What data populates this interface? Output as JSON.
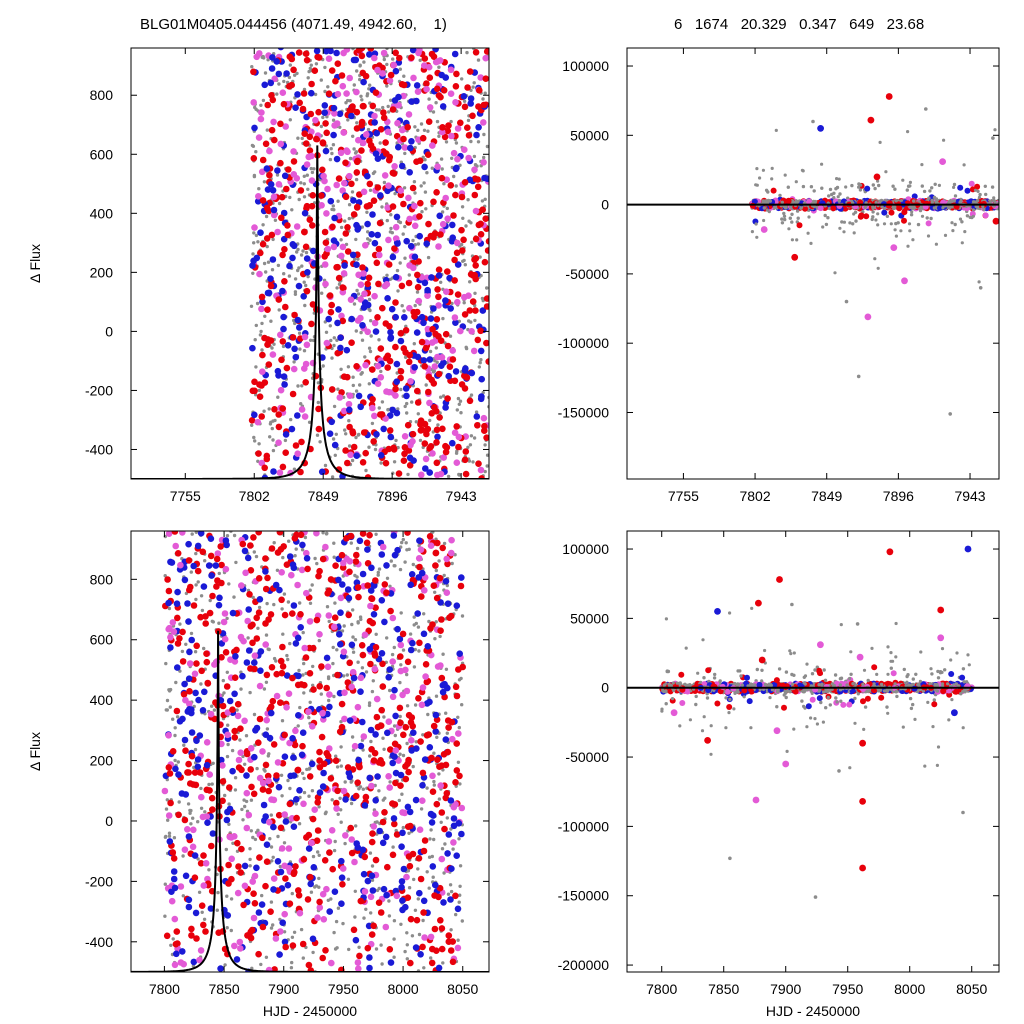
{
  "header": {
    "left_title": "BLG01M0405.044456 (4071.49, 4942.60,    1)",
    "right_title": "6   1674   20.329   0.347   649   23.68"
  },
  "colors": {
    "gray": "#8c8c8c",
    "red": "#e8000b",
    "blue": "#1a1ad6",
    "magenta": "#e35ad6",
    "model": "#000000"
  },
  "chart_data": [
    {
      "id": "top-left",
      "type": "scatter",
      "xlabel": "",
      "ylabel": "Δ Flux",
      "xlim": [
        7718,
        7962
      ],
      "ylim": [
        -500,
        960
      ],
      "xticks": [
        7755,
        7802,
        7849,
        7896,
        7943
      ],
      "yticks": [
        -400,
        -200,
        0,
        200,
        400,
        600,
        800
      ],
      "density": {
        "x_start": 7800,
        "x_end": 7962,
        "peak_x": 7842,
        "floor": 700,
        "scatter_half_width": 700
      },
      "model": {
        "t0": 7845,
        "tE": 14,
        "baseline": -500,
        "peak": 630
      }
    },
    {
      "id": "top-right",
      "type": "scatter",
      "xlabel": "",
      "ylabel": "",
      "xlim": [
        7718,
        7962
      ],
      "ylim": [
        -198000,
        113000
      ],
      "xticks": [
        7755,
        7802,
        7849,
        7896,
        7943
      ],
      "yticks": [
        -150000,
        -100000,
        -50000,
        0,
        50000,
        100000
      ],
      "band": {
        "x_start": 7800,
        "x_end": 7962,
        "half_width": 3000
      },
      "outliers": [
        {
          "x": 7845,
          "y": 55000,
          "color": "blue"
        },
        {
          "x": 7878,
          "y": 61000,
          "color": "red"
        },
        {
          "x": 7890,
          "y": 78000,
          "color": "red"
        },
        {
          "x": 7925,
          "y": 31000,
          "color": "magenta"
        },
        {
          "x": 7882,
          "y": 20000,
          "color": "red"
        },
        {
          "x": 7828,
          "y": -38000,
          "color": "red"
        },
        {
          "x": 7876,
          "y": -81000,
          "color": "magenta"
        },
        {
          "x": 7900,
          "y": -55000,
          "color": "magenta"
        },
        {
          "x": 7808,
          "y": -18000,
          "color": "magenta"
        },
        {
          "x": 7893,
          "y": -31000,
          "color": "magenta"
        },
        {
          "x": 7914,
          "y": 69000,
          "color": "gray"
        },
        {
          "x": 7870,
          "y": -124000,
          "color": "gray"
        },
        {
          "x": 7930,
          "y": -151000,
          "color": "gray"
        },
        {
          "x": 7862,
          "y": -70000,
          "color": "gray"
        },
        {
          "x": 7840,
          "y": 60000,
          "color": "gray"
        },
        {
          "x": 7950,
          "y": -60000,
          "color": "gray"
        },
        {
          "x": 7958,
          "y": 48000,
          "color": "gray"
        },
        {
          "x": 7960,
          "y": -12000,
          "color": "red"
        }
      ]
    },
    {
      "id": "bottom-left",
      "type": "scatter",
      "xlabel": "HJD - 2450000",
      "ylabel": "Δ Flux",
      "xlim": [
        7772,
        8072
      ],
      "ylim": [
        -500,
        960
      ],
      "xticks": [
        7800,
        7850,
        7900,
        7950,
        8000,
        8050
      ],
      "yticks": [
        -400,
        -200,
        0,
        200,
        400,
        600,
        800
      ],
      "density": {
        "x_start": 7800,
        "x_end": 8050,
        "peak_x": 7842,
        "floor": 700,
        "scatter_half_width": 700
      },
      "model": {
        "t0": 7845,
        "tE": 14,
        "baseline": -500,
        "peak": 630
      }
    },
    {
      "id": "bottom-right",
      "type": "scatter",
      "xlabel": "HJD - 2450000",
      "ylabel": "",
      "xlim": [
        7772,
        8072
      ],
      "ylim": [
        -205000,
        113000
      ],
      "xticks": [
        7800,
        7850,
        7900,
        7950,
        8000,
        8050
      ],
      "yticks": [
        -200000,
        -150000,
        -100000,
        -50000,
        0,
        50000,
        100000
      ],
      "band": {
        "x_start": 7800,
        "x_end": 8050,
        "half_width": 3000
      },
      "outliers": [
        {
          "x": 7845,
          "y": 55000,
          "color": "blue"
        },
        {
          "x": 7878,
          "y": 61000,
          "color": "red"
        },
        {
          "x": 7895,
          "y": 78000,
          "color": "red"
        },
        {
          "x": 7984,
          "y": 98000,
          "color": "red"
        },
        {
          "x": 8047,
          "y": 100000,
          "color": "blue"
        },
        {
          "x": 8025,
          "y": 56000,
          "color": "red"
        },
        {
          "x": 8025,
          "y": 36000,
          "color": "magenta"
        },
        {
          "x": 7928,
          "y": 31000,
          "color": "magenta"
        },
        {
          "x": 7960,
          "y": 22000,
          "color": "magenta"
        },
        {
          "x": 7881,
          "y": 20000,
          "color": "red"
        },
        {
          "x": 7837,
          "y": -38000,
          "color": "red"
        },
        {
          "x": 7876,
          "y": -81000,
          "color": "magenta"
        },
        {
          "x": 7900,
          "y": -55000,
          "color": "magenta"
        },
        {
          "x": 7962,
          "y": -40000,
          "color": "red"
        },
        {
          "x": 7962,
          "y": -82000,
          "color": "red"
        },
        {
          "x": 7962,
          "y": -130000,
          "color": "red"
        },
        {
          "x": 7810,
          "y": -18000,
          "color": "magenta"
        },
        {
          "x": 7893,
          "y": -31000,
          "color": "magenta"
        },
        {
          "x": 8036,
          "y": -18000,
          "color": "blue"
        },
        {
          "x": 7855,
          "y": -123000,
          "color": "gray"
        },
        {
          "x": 7924,
          "y": -151000,
          "color": "gray"
        },
        {
          "x": 8043,
          "y": -90000,
          "color": "gray"
        },
        {
          "x": 7943,
          "y": -60000,
          "color": "gray"
        },
        {
          "x": 7905,
          "y": 60000,
          "color": "gray"
        },
        {
          "x": 7958,
          "y": 46000,
          "color": "gray"
        }
      ]
    }
  ]
}
